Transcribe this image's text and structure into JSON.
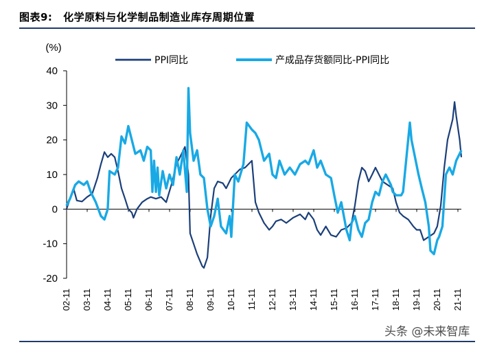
{
  "header": {
    "label": "图表9:",
    "title": "化学原料与化学制品制造业库存周期位置"
  },
  "watermark": "头条 @未来智库",
  "colors": {
    "ppi": "#1b3f7a",
    "inventory": "#19a9e5",
    "rule": "#1f3a6b"
  },
  "chart_data": {
    "type": "line",
    "ylabel": "(%)",
    "ylim": [
      -20,
      40
    ],
    "yticks": [
      -20,
      -10,
      0,
      10,
      20,
      30,
      40
    ],
    "xlim": [
      2002.833,
      2022.0
    ],
    "xtick_labels": [
      "02-11",
      "03-11",
      "04-11",
      "05-11",
      "06-11",
      "07-11",
      "08-11",
      "09-11",
      "10-11",
      "11-11",
      "12-11",
      "13-11",
      "14-11",
      "15-11",
      "16-11",
      "17-11",
      "18-11",
      "19-11",
      "20-11",
      "21-11"
    ],
    "xtick_values": [
      2002.833,
      2003.833,
      2004.833,
      2005.833,
      2006.833,
      2007.833,
      2008.833,
      2009.833,
      2010.833,
      2011.833,
      2012.833,
      2013.833,
      2014.833,
      2015.833,
      2016.833,
      2017.833,
      2018.833,
      2019.833,
      2020.833,
      2021.833
    ],
    "grid": false,
    "legend": "top",
    "series": [
      {
        "name": "PPI同比",
        "points": [
          [
            2002.83,
            0
          ],
          [
            2003.0,
            3
          ],
          [
            2003.17,
            6
          ],
          [
            2003.33,
            2.5
          ],
          [
            2003.58,
            2.2
          ],
          [
            2003.83,
            3.5
          ],
          [
            2004.08,
            4.5
          ],
          [
            2004.33,
            9
          ],
          [
            2004.5,
            13
          ],
          [
            2004.67,
            16.5
          ],
          [
            2004.83,
            15
          ],
          [
            2005.0,
            16
          ],
          [
            2005.17,
            15
          ],
          [
            2005.33,
            11
          ],
          [
            2005.5,
            6
          ],
          [
            2005.67,
            3
          ],
          [
            2005.83,
            0
          ],
          [
            2006.0,
            -1
          ],
          [
            2006.08,
            -2.5
          ],
          [
            2006.25,
            0
          ],
          [
            2006.5,
            2
          ],
          [
            2006.75,
            3
          ],
          [
            2006.92,
            3.5
          ],
          [
            2007.17,
            3
          ],
          [
            2007.42,
            3.5
          ],
          [
            2007.67,
            2
          ],
          [
            2007.92,
            7
          ],
          [
            2008.17,
            13
          ],
          [
            2008.42,
            16
          ],
          [
            2008.58,
            18
          ],
          [
            2008.75,
            10
          ],
          [
            2008.83,
            -7
          ],
          [
            2009.0,
            -10
          ],
          [
            2009.17,
            -13
          ],
          [
            2009.42,
            -16.5
          ],
          [
            2009.5,
            -17
          ],
          [
            2009.67,
            -14
          ],
          [
            2009.83,
            -2
          ],
          [
            2010.0,
            6
          ],
          [
            2010.17,
            8
          ],
          [
            2010.42,
            7.5
          ],
          [
            2010.58,
            6
          ],
          [
            2010.83,
            9
          ],
          [
            2011.0,
            10
          ],
          [
            2011.25,
            11.5
          ],
          [
            2011.5,
            12
          ],
          [
            2011.83,
            14
          ],
          [
            2012.0,
            2
          ],
          [
            2012.17,
            -1
          ],
          [
            2012.42,
            -4
          ],
          [
            2012.67,
            -6
          ],
          [
            2012.83,
            -5
          ],
          [
            2013.0,
            -3.5
          ],
          [
            2013.25,
            -3
          ],
          [
            2013.5,
            -4
          ],
          [
            2013.83,
            -2.5
          ],
          [
            2014.17,
            -1.5
          ],
          [
            2014.42,
            -3
          ],
          [
            2014.58,
            -1
          ],
          [
            2014.83,
            -3
          ],
          [
            2015.0,
            -6
          ],
          [
            2015.17,
            -7.5
          ],
          [
            2015.42,
            -5
          ],
          [
            2015.67,
            -7.5
          ],
          [
            2015.92,
            -8
          ],
          [
            2016.17,
            -6
          ],
          [
            2016.42,
            -5.5
          ],
          [
            2016.67,
            -4
          ],
          [
            2016.83,
            1
          ],
          [
            2017.0,
            8
          ],
          [
            2017.17,
            12
          ],
          [
            2017.33,
            11
          ],
          [
            2017.5,
            8
          ],
          [
            2017.67,
            10
          ],
          [
            2017.83,
            12
          ],
          [
            2018.0,
            10
          ],
          [
            2018.17,
            8
          ],
          [
            2018.42,
            7
          ],
          [
            2018.67,
            6
          ],
          [
            2018.83,
            2
          ],
          [
            2019.0,
            -1
          ],
          [
            2019.17,
            -2
          ],
          [
            2019.42,
            -3
          ],
          [
            2019.67,
            -5
          ],
          [
            2019.83,
            -6
          ],
          [
            2020.0,
            -6
          ],
          [
            2020.17,
            -9
          ],
          [
            2020.42,
            -8
          ],
          [
            2020.67,
            -7
          ],
          [
            2020.83,
            -5
          ],
          [
            2021.0,
            1
          ],
          [
            2021.17,
            12
          ],
          [
            2021.33,
            20
          ],
          [
            2021.58,
            26
          ],
          [
            2021.67,
            31
          ],
          [
            2021.75,
            27
          ],
          [
            2021.92,
            20
          ],
          [
            2022.0,
            15
          ]
        ]
      },
      {
        "name": "产成品存货额同比-PPI同比",
        "points": [
          [
            2002.83,
            1
          ],
          [
            2003.0,
            3
          ],
          [
            2003.25,
            7
          ],
          [
            2003.42,
            8
          ],
          [
            2003.67,
            7
          ],
          [
            2003.83,
            8
          ],
          [
            2004.0,
            5
          ],
          [
            2004.25,
            2
          ],
          [
            2004.5,
            -2
          ],
          [
            2004.67,
            -3
          ],
          [
            2004.83,
            0
          ],
          [
            2004.92,
            11
          ],
          [
            2005.17,
            10
          ],
          [
            2005.33,
            12
          ],
          [
            2005.5,
            21
          ],
          [
            2005.67,
            19
          ],
          [
            2005.83,
            24
          ],
          [
            2006.0,
            20
          ],
          [
            2006.17,
            16
          ],
          [
            2006.42,
            17
          ],
          [
            2006.58,
            14
          ],
          [
            2006.75,
            18
          ],
          [
            2006.92,
            17
          ],
          [
            2007.0,
            5
          ],
          [
            2007.08,
            14
          ],
          [
            2007.17,
            5
          ],
          [
            2007.25,
            12
          ],
          [
            2007.33,
            4
          ],
          [
            2007.5,
            11
          ],
          [
            2007.67,
            6
          ],
          [
            2007.83,
            10
          ],
          [
            2008.0,
            7
          ],
          [
            2008.17,
            15
          ],
          [
            2008.33,
            10
          ],
          [
            2008.5,
            17
          ],
          [
            2008.67,
            5
          ],
          [
            2008.75,
            35
          ],
          [
            2008.83,
            22
          ],
          [
            2009.0,
            14
          ],
          [
            2009.17,
            17
          ],
          [
            2009.33,
            10
          ],
          [
            2009.5,
            9
          ],
          [
            2009.67,
            0
          ],
          [
            2009.83,
            -5
          ],
          [
            2010.0,
            -2
          ],
          [
            2010.17,
            3
          ],
          [
            2010.33,
            -5
          ],
          [
            2010.58,
            -7
          ],
          [
            2010.75,
            -2
          ],
          [
            2010.83,
            -8
          ],
          [
            2011.0,
            10
          ],
          [
            2011.17,
            8
          ],
          [
            2011.42,
            13
          ],
          [
            2011.58,
            25
          ],
          [
            2011.83,
            23
          ],
          [
            2012.0,
            22
          ],
          [
            2012.17,
            20
          ],
          [
            2012.42,
            14
          ],
          [
            2012.67,
            16
          ],
          [
            2012.83,
            10
          ],
          [
            2013.0,
            9
          ],
          [
            2013.17,
            14
          ],
          [
            2013.42,
            10
          ],
          [
            2013.67,
            12
          ],
          [
            2013.92,
            10
          ],
          [
            2014.17,
            13
          ],
          [
            2014.42,
            14
          ],
          [
            2014.58,
            13
          ],
          [
            2014.83,
            17
          ],
          [
            2015.0,
            12
          ],
          [
            2015.17,
            14
          ],
          [
            2015.42,
            10
          ],
          [
            2015.67,
            9
          ],
          [
            2015.83,
            4
          ],
          [
            2016.0,
            -1
          ],
          [
            2016.17,
            2
          ],
          [
            2016.42,
            -6
          ],
          [
            2016.58,
            -9
          ],
          [
            2016.67,
            -4
          ],
          [
            2016.83,
            -2
          ],
          [
            2017.0,
            -6
          ],
          [
            2017.17,
            -8
          ],
          [
            2017.33,
            -4
          ],
          [
            2017.5,
            -3
          ],
          [
            2017.67,
            2
          ],
          [
            2017.83,
            5
          ],
          [
            2018.0,
            4
          ],
          [
            2018.17,
            8
          ],
          [
            2018.33,
            10
          ],
          [
            2018.58,
            7
          ],
          [
            2018.67,
            5
          ],
          [
            2018.83,
            4
          ],
          [
            2019.08,
            4
          ],
          [
            2019.17,
            5
          ],
          [
            2019.5,
            25
          ],
          [
            2019.58,
            20
          ],
          [
            2019.75,
            15
          ],
          [
            2019.92,
            10
          ],
          [
            2020.08,
            6
          ],
          [
            2020.25,
            2
          ],
          [
            2020.42,
            -5
          ],
          [
            2020.5,
            -12
          ],
          [
            2020.67,
            -13
          ],
          [
            2020.83,
            -9
          ],
          [
            2020.92,
            -8
          ],
          [
            2021.08,
            -5
          ],
          [
            2021.25,
            10
          ],
          [
            2021.42,
            12
          ],
          [
            2021.58,
            10
          ],
          [
            2021.75,
            14
          ],
          [
            2022.0,
            17
          ]
        ]
      }
    ]
  }
}
